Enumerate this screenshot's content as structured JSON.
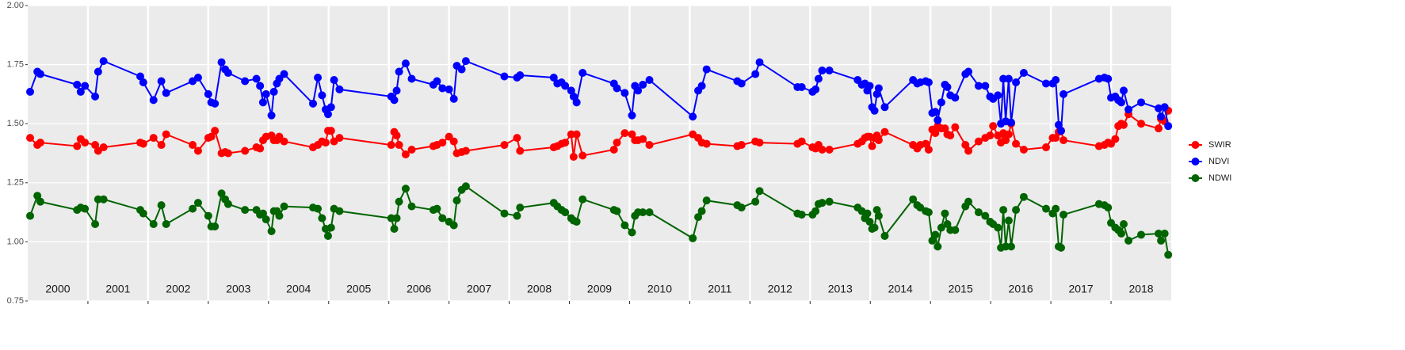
{
  "chart_data": {
    "type": "line",
    "x": [
      2000.04,
      2000.16,
      2000.21,
      2000.82,
      2000.88,
      2000.95,
      2001.12,
      2001.17,
      2001.26,
      2001.87,
      2001.92,
      2002.09,
      2002.22,
      2002.3,
      2002.74,
      2002.83,
      2003.0,
      2003.05,
      2003.11,
      2003.22,
      2003.28,
      2003.33,
      2003.61,
      2003.8,
      2003.86,
      2003.91,
      2003.96,
      2004.05,
      2004.09,
      2004.14,
      2004.18,
      2004.26,
      2004.74,
      2004.82,
      2004.89,
      2004.95,
      2004.99,
      2005.04,
      2005.09,
      2005.18,
      2006.04,
      2006.09,
      2006.13,
      2006.17,
      2006.28,
      2006.38,
      2006.74,
      2006.8,
      2006.89,
      2007.0,
      2007.08,
      2007.13,
      2007.21,
      2007.28,
      2007.92,
      2008.13,
      2008.18,
      2008.74,
      2008.8,
      2008.87,
      2008.93,
      2009.03,
      2009.07,
      2009.12,
      2009.22,
      2009.74,
      2009.79,
      2009.92,
      2010.04,
      2010.09,
      2010.14,
      2010.22,
      2010.33,
      2011.05,
      2011.14,
      2011.2,
      2011.28,
      2011.79,
      2011.86,
      2012.09,
      2012.16,
      2012.79,
      2012.86,
      2013.04,
      2013.09,
      2013.14,
      2013.2,
      2013.32,
      2013.79,
      2013.86,
      2013.91,
      2013.95,
      2013.99,
      2014.03,
      2014.07,
      2014.11,
      2014.14,
      2014.24,
      2014.71,
      2014.78,
      2014.83,
      2014.92,
      2014.97,
      2015.03,
      2015.08,
      2015.12,
      2015.18,
      2015.24,
      2015.28,
      2015.33,
      2015.41,
      2015.58,
      2015.63,
      2015.8,
      2015.91,
      2015.99,
      2016.04,
      2016.12,
      2016.17,
      2016.21,
      2016.25,
      2016.3,
      2016.34,
      2016.42,
      2016.55,
      2016.92,
      2017.03,
      2017.08,
      2017.13,
      2017.17,
      2017.21,
      2017.8,
      2017.89,
      2017.95,
      2018.0,
      2018.07,
      2018.12,
      2018.17,
      2018.21,
      2018.29,
      2018.5,
      2018.79,
      2018.83,
      2018.89,
      2018.95
    ],
    "series": [
      {
        "name": "SWIR",
        "color": "#ff0000",
        "values": [
          1.44,
          1.41,
          1.42,
          1.405,
          1.435,
          1.42,
          1.41,
          1.385,
          1.4,
          1.42,
          1.415,
          1.44,
          1.41,
          1.455,
          1.41,
          1.385,
          1.44,
          1.445,
          1.47,
          1.375,
          1.38,
          1.375,
          1.385,
          1.4,
          1.395,
          1.43,
          1.445,
          1.45,
          1.43,
          1.43,
          1.445,
          1.425,
          1.4,
          1.41,
          1.425,
          1.42,
          1.47,
          1.47,
          1.425,
          1.44,
          1.41,
          1.465,
          1.45,
          1.41,
          1.37,
          1.39,
          1.405,
          1.41,
          1.42,
          1.445,
          1.425,
          1.375,
          1.38,
          1.385,
          1.41,
          1.44,
          1.385,
          1.4,
          1.405,
          1.415,
          1.42,
          1.455,
          1.36,
          1.455,
          1.365,
          1.39,
          1.42,
          1.46,
          1.455,
          1.43,
          1.43,
          1.435,
          1.41,
          1.455,
          1.44,
          1.42,
          1.415,
          1.405,
          1.41,
          1.425,
          1.42,
          1.415,
          1.425,
          1.4,
          1.395,
          1.41,
          1.39,
          1.39,
          1.415,
          1.425,
          1.44,
          1.445,
          1.445,
          1.405,
          1.44,
          1.45,
          1.43,
          1.465,
          1.41,
          1.395,
          1.41,
          1.415,
          1.39,
          1.475,
          1.46,
          1.49,
          1.48,
          1.48,
          1.455,
          1.45,
          1.485,
          1.41,
          1.385,
          1.425,
          1.44,
          1.45,
          1.49,
          1.45,
          1.42,
          1.46,
          1.43,
          1.455,
          1.5,
          1.415,
          1.39,
          1.4,
          1.44,
          1.44,
          1.465,
          1.47,
          1.43,
          1.405,
          1.41,
          1.42,
          1.415,
          1.435,
          1.49,
          1.5,
          1.495,
          1.54,
          1.5,
          1.48,
          1.52,
          1.51,
          1.555
        ]
      },
      {
        "name": "NDVI",
        "color": "#0000ff",
        "values": [
          1.635,
          1.72,
          1.71,
          1.665,
          1.635,
          1.66,
          1.615,
          1.72,
          1.765,
          1.7,
          1.675,
          1.6,
          1.68,
          1.63,
          1.68,
          1.695,
          1.625,
          1.59,
          1.585,
          1.76,
          1.73,
          1.715,
          1.68,
          1.69,
          1.66,
          1.59,
          1.625,
          1.535,
          1.635,
          1.67,
          1.69,
          1.71,
          1.585,
          1.695,
          1.62,
          1.56,
          1.54,
          1.57,
          1.685,
          1.645,
          1.615,
          1.6,
          1.64,
          1.72,
          1.755,
          1.69,
          1.665,
          1.68,
          1.65,
          1.645,
          1.605,
          1.745,
          1.73,
          1.765,
          1.7,
          1.695,
          1.705,
          1.695,
          1.67,
          1.675,
          1.66,
          1.64,
          1.615,
          1.59,
          1.715,
          1.67,
          1.65,
          1.63,
          1.535,
          1.66,
          1.64,
          1.665,
          1.685,
          1.53,
          1.64,
          1.66,
          1.73,
          1.68,
          1.67,
          1.71,
          1.76,
          1.655,
          1.655,
          1.635,
          1.645,
          1.69,
          1.725,
          1.725,
          1.685,
          1.665,
          1.67,
          1.64,
          1.66,
          1.57,
          1.555,
          1.625,
          1.65,
          1.57,
          1.685,
          1.67,
          1.675,
          1.68,
          1.675,
          1.545,
          1.55,
          1.515,
          1.59,
          1.665,
          1.655,
          1.62,
          1.61,
          1.71,
          1.72,
          1.66,
          1.66,
          1.615,
          1.605,
          1.62,
          1.5,
          1.69,
          1.51,
          1.69,
          1.505,
          1.675,
          1.715,
          1.67,
          1.67,
          1.685,
          1.495,
          1.47,
          1.625,
          1.69,
          1.695,
          1.69,
          1.61,
          1.615,
          1.6,
          1.59,
          1.64,
          1.56,
          1.59,
          1.565,
          1.53,
          1.57,
          1.49
        ]
      },
      {
        "name": "NDWI",
        "color": "#006400",
        "values": [
          1.11,
          1.195,
          1.17,
          1.135,
          1.145,
          1.14,
          1.075,
          1.18,
          1.18,
          1.135,
          1.12,
          1.075,
          1.155,
          1.075,
          1.14,
          1.165,
          1.11,
          1.065,
          1.065,
          1.205,
          1.18,
          1.16,
          1.135,
          1.135,
          1.115,
          1.12,
          1.095,
          1.045,
          1.13,
          1.13,
          1.11,
          1.15,
          1.145,
          1.14,
          1.1,
          1.055,
          1.025,
          1.06,
          1.14,
          1.13,
          1.1,
          1.055,
          1.1,
          1.17,
          1.225,
          1.15,
          1.135,
          1.14,
          1.1,
          1.085,
          1.07,
          1.175,
          1.22,
          1.235,
          1.12,
          1.11,
          1.145,
          1.165,
          1.15,
          1.135,
          1.125,
          1.1,
          1.09,
          1.085,
          1.18,
          1.135,
          1.13,
          1.07,
          1.04,
          1.11,
          1.125,
          1.125,
          1.125,
          1.015,
          1.105,
          1.13,
          1.175,
          1.155,
          1.145,
          1.17,
          1.215,
          1.12,
          1.115,
          1.115,
          1.13,
          1.16,
          1.165,
          1.17,
          1.145,
          1.13,
          1.1,
          1.12,
          1.085,
          1.055,
          1.06,
          1.135,
          1.11,
          1.025,
          1.18,
          1.155,
          1.145,
          1.13,
          1.125,
          1.005,
          1.03,
          0.98,
          1.06,
          1.12,
          1.075,
          1.05,
          1.05,
          1.15,
          1.17,
          1.125,
          1.11,
          1.085,
          1.075,
          1.06,
          0.975,
          1.135,
          0.98,
          1.09,
          0.98,
          1.135,
          1.19,
          1.14,
          1.12,
          1.14,
          0.98,
          0.975,
          1.115,
          1.16,
          1.155,
          1.145,
          1.08,
          1.06,
          1.05,
          1.035,
          1.075,
          1.005,
          1.03,
          1.035,
          1.005,
          1.035,
          0.945
        ]
      }
    ],
    "xlim": [
      2000,
      2019
    ],
    "xticks": [
      {
        "value": 2000.5,
        "label": "2000"
      },
      {
        "value": 2001.5,
        "label": "2001"
      },
      {
        "value": 2002.5,
        "label": "2002"
      },
      {
        "value": 2003.5,
        "label": "2003"
      },
      {
        "value": 2004.5,
        "label": "2004"
      },
      {
        "value": 2005.5,
        "label": "2005"
      },
      {
        "value": 2006.5,
        "label": "2006"
      },
      {
        "value": 2007.5,
        "label": "2007"
      },
      {
        "value": 2008.5,
        "label": "2008"
      },
      {
        "value": 2009.5,
        "label": "2009"
      },
      {
        "value": 2010.5,
        "label": "2010"
      },
      {
        "value": 2011.5,
        "label": "2011"
      },
      {
        "value": 2012.5,
        "label": "2012"
      },
      {
        "value": 2013.5,
        "label": "2013"
      },
      {
        "value": 2014.5,
        "label": "2014"
      },
      {
        "value": 2015.5,
        "label": "2015"
      },
      {
        "value": 2016.5,
        "label": "2016"
      },
      {
        "value": 2017.5,
        "label": "2017"
      },
      {
        "value": 2018.5,
        "label": "2018"
      }
    ],
    "xgrid": [
      2001,
      2002,
      2003,
      2004,
      2005,
      2006,
      2007,
      2008,
      2009,
      2010,
      2011,
      2012,
      2013,
      2014,
      2015,
      2016,
      2017,
      2018
    ],
    "ylim": [
      0.75,
      2.0
    ],
    "yticks": [
      {
        "value": 0.75,
        "label": "0.75"
      },
      {
        "value": 1.0,
        "label": "1.00"
      },
      {
        "value": 1.25,
        "label": "1.25"
      },
      {
        "value": 1.5,
        "label": "1.50"
      },
      {
        "value": 1.75,
        "label": "1.75"
      },
      {
        "value": 2.0,
        "label": "2.00"
      }
    ],
    "grid": true,
    "legend": "right"
  }
}
